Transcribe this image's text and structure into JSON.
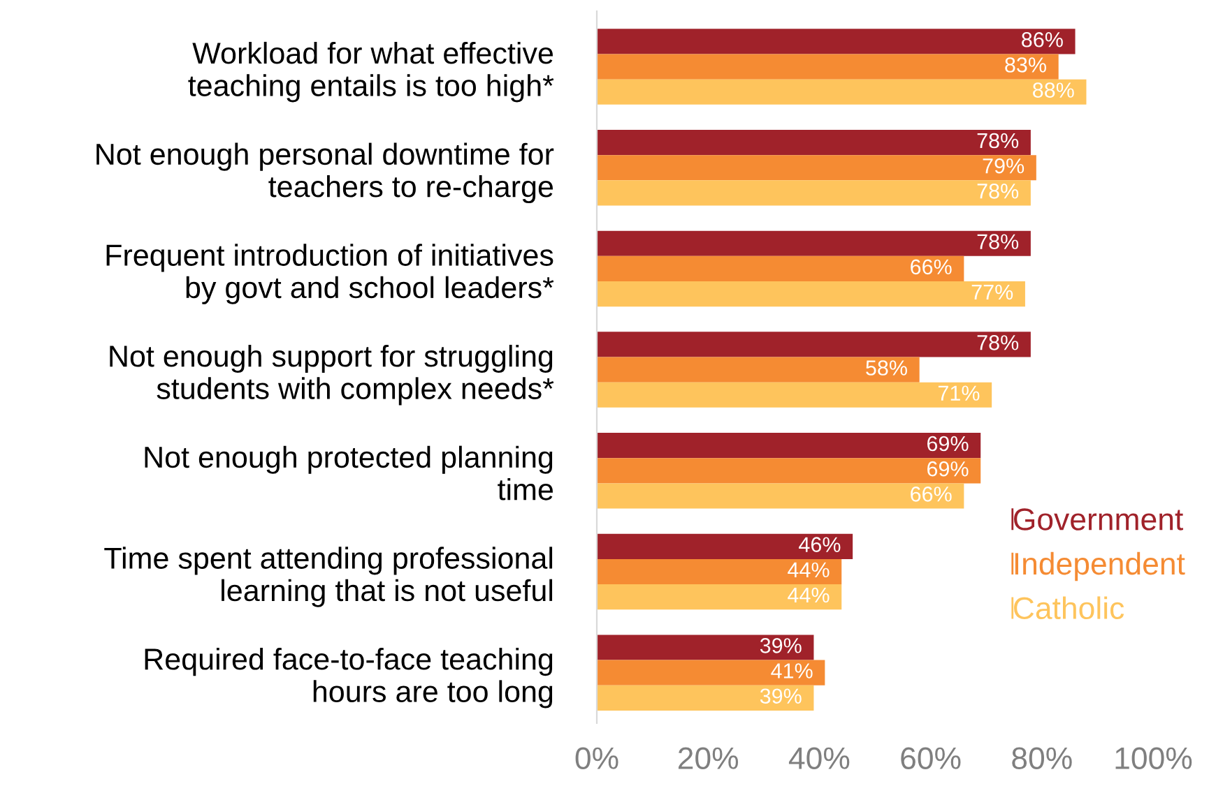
{
  "chart_data": {
    "type": "bar",
    "orientation": "horizontal",
    "categories": [
      "Workload for what effective\nteaching entails is too high*",
      "Not enough personal downtime for\nteachers to re-charge",
      "Frequent introduction of initiatives\nby govt and school leaders*",
      "Not enough support for struggling\nstudents with complex needs*",
      "Not enough protected planning\ntime",
      "Time spent attending professional\nlearning that is not useful",
      "Required face-to-face teaching\nhours are too long"
    ],
    "series": [
      {
        "name": "Government",
        "color": "#a0222a",
        "values": [
          86,
          78,
          78,
          78,
          69,
          46,
          39
        ],
        "value_labels": [
          "86%",
          "78%",
          "78%",
          "78%",
          "69%",
          "46%",
          "39%"
        ]
      },
      {
        "name": "Independent",
        "color": "#f58b33",
        "values": [
          83,
          79,
          66,
          58,
          69,
          44,
          41
        ],
        "value_labels": [
          "83%",
          "79%",
          "66%",
          "58%",
          "69%",
          "44%",
          "41%"
        ]
      },
      {
        "name": "Catholic",
        "color": "#fec45c",
        "values": [
          88,
          78,
          77,
          71,
          66,
          44,
          39
        ],
        "value_labels": [
          "88%",
          "78%",
          "77%",
          "71%",
          "66%",
          "44%",
          "39%"
        ]
      }
    ],
    "xlim": [
      0,
      100
    ],
    "xticks": [
      {
        "value": 0,
        "label": "0%"
      },
      {
        "value": 20,
        "label": "20%"
      },
      {
        "value": 40,
        "label": "40%"
      },
      {
        "value": 60,
        "label": "60%"
      },
      {
        "value": 80,
        "label": "80%"
      },
      {
        "value": 100,
        "label": "100%"
      }
    ],
    "grid": false,
    "legend": "bottom right"
  }
}
